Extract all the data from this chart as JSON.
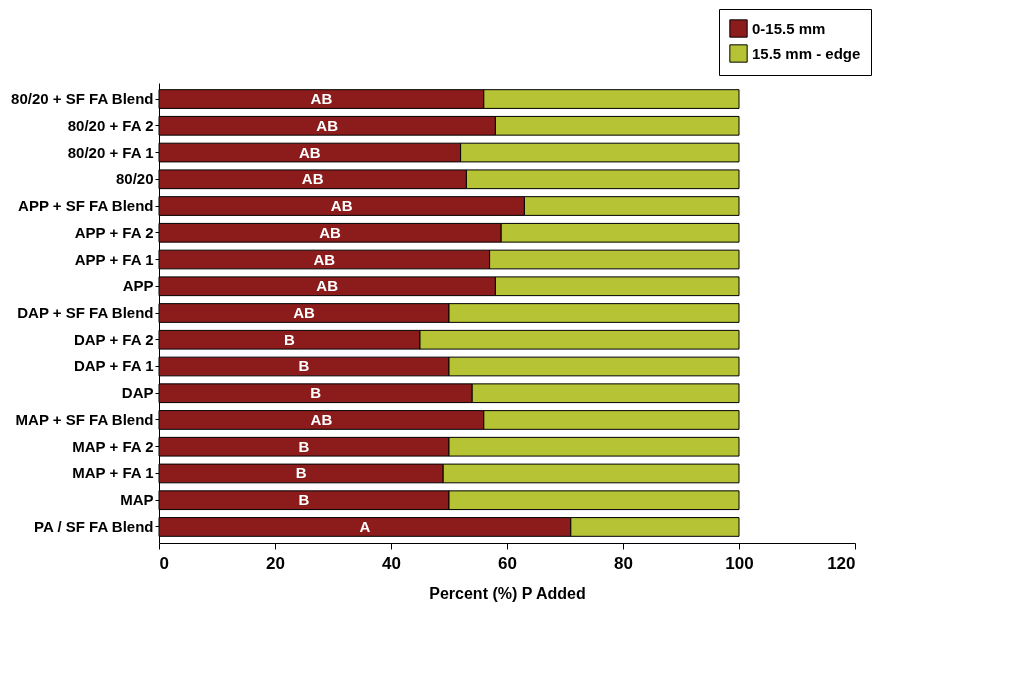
{
  "chart_data": {
    "type": "bar",
    "orientation": "horizontal",
    "stacked": true,
    "categories": [
      "80/20 + SF FA Blend",
      "80/20 + FA 2",
      "80/20 + FA 1",
      "80/20",
      "APP + SF FA Blend",
      "APP + FA 2",
      "APP + FA 1",
      "APP",
      "DAP + SF FA Blend",
      "DAP + FA 2",
      "DAP + FA 1",
      "DAP",
      "MAP + SF FA Blend",
      "MAP + FA 2",
      "MAP + FA 1",
      "MAP",
      "PA / SF FA Blend"
    ],
    "series": [
      {
        "name": "0-15.5 mm",
        "color": "#8c1c1c",
        "values": [
          56,
          58,
          52,
          53,
          63,
          59,
          57,
          58,
          50,
          45,
          50,
          54,
          56,
          50,
          49,
          50,
          71
        ],
        "value_labels": [
          "AB",
          "AB",
          "AB",
          "AB",
          "AB",
          "AB",
          "AB",
          "AB",
          "AB",
          "B",
          "B",
          "B",
          "AB",
          "B",
          "B",
          "B",
          "A"
        ]
      },
      {
        "name": "15.5 mm - edge",
        "color": "#b5c334",
        "values": [
          44,
          42,
          48,
          47,
          37,
          41,
          43,
          42,
          50,
          55,
          50,
          46,
          44,
          50,
          51,
          50,
          29
        ]
      }
    ],
    "xlabel": "Percent (%) P Added",
    "xlim": [
      0,
      120
    ],
    "xticks": [
      0,
      20,
      40,
      60,
      80,
      100,
      120
    ],
    "grid": false,
    "legend": "top right"
  }
}
